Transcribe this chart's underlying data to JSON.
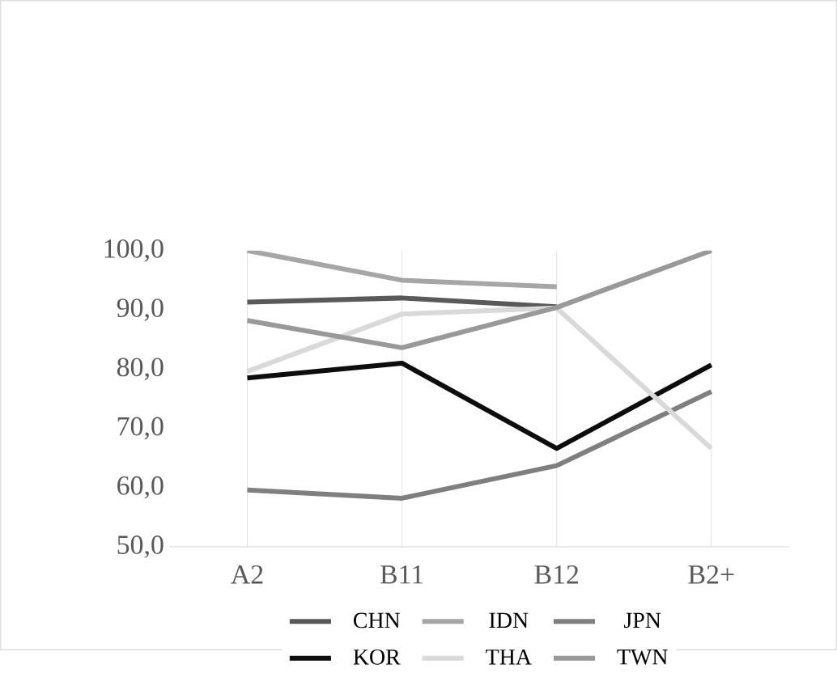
{
  "chart_data": {
    "type": "line",
    "categories": [
      "A2",
      "B11",
      "B12",
      "B2+"
    ],
    "series": [
      {
        "name": "CHN",
        "color": "#595959",
        "values": [
          91.3,
          92.0,
          90.5,
          null
        ]
      },
      {
        "name": "IDN",
        "color": "#a6a6a6",
        "values": [
          100.0,
          95.0,
          93.9,
          null
        ]
      },
      {
        "name": "JPN",
        "color": "#7f7f7f",
        "values": [
          59.6,
          58.2,
          63.7,
          76.2
        ]
      },
      {
        "name": "KOR",
        "color": "#0d0d0d",
        "values": [
          78.5,
          81.0,
          66.6,
          80.7
        ]
      },
      {
        "name": "THA",
        "color": "#d9d9d9",
        "values": [
          79.6,
          89.3,
          90.3,
          66.6
        ]
      },
      {
        "name": "TWN",
        "color": "#999999",
        "values": [
          88.2,
          83.6,
          90.4,
          100.0
        ]
      }
    ],
    "ylim": [
      50,
      100
    ],
    "yticks": [
      {
        "value": 50,
        "label": "50,0"
      },
      {
        "value": 60,
        "label": "60,0"
      },
      {
        "value": 70,
        "label": "70,0"
      },
      {
        "value": 80,
        "label": "80,0"
      },
      {
        "value": 90,
        "label": "90,0"
      },
      {
        "value": 100,
        "label": "100,0"
      }
    ],
    "grid": "x",
    "legend": "bottom",
    "marker": "none",
    "line_style": "solid"
  }
}
